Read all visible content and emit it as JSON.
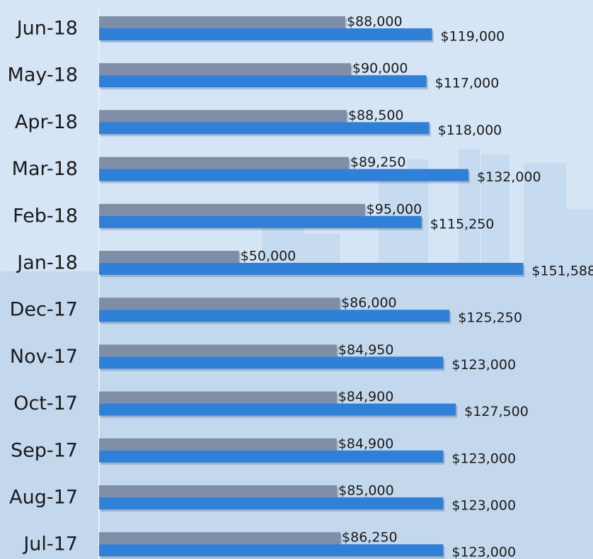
{
  "chart_data": {
    "type": "bar",
    "orientation": "horizontal",
    "categories": [
      "Jun-18",
      "May-18",
      "Apr-18",
      "Mar-18",
      "Feb-18",
      "Jan-18",
      "Dec-17",
      "Nov-17",
      "Oct-17",
      "Sep-17",
      "Aug-17",
      "Jul-17"
    ],
    "xlim": [
      0,
      175000
    ],
    "series": [
      {
        "color": "#7f8ea6",
        "values": [
          88000,
          90000,
          88500,
          89250,
          95000,
          50000,
          86000,
          84950,
          84900,
          84900,
          85000,
          86250
        ],
        "value_labels": [
          "$88,000",
          "$90,000",
          "$88,500",
          "$89,250",
          "$95,000",
          "$50,000",
          "$86,000",
          "$84,950",
          "$84,900",
          "$84,900",
          "$85,000",
          "$86,250"
        ]
      },
      {
        "color": "#2f80d9",
        "values": [
          119000,
          117000,
          118000,
          132000,
          115250,
          151588,
          125250,
          123000,
          127500,
          123000,
          123000,
          123000
        ],
        "value_labels": [
          "$119,000",
          "$117,000",
          "$118,000",
          "$132,000",
          "$115,250",
          "$151,588",
          "$125,250",
          "$123,000",
          "$127,500",
          "$123,000",
          "$123,000",
          "$123,000"
        ]
      }
    ]
  }
}
